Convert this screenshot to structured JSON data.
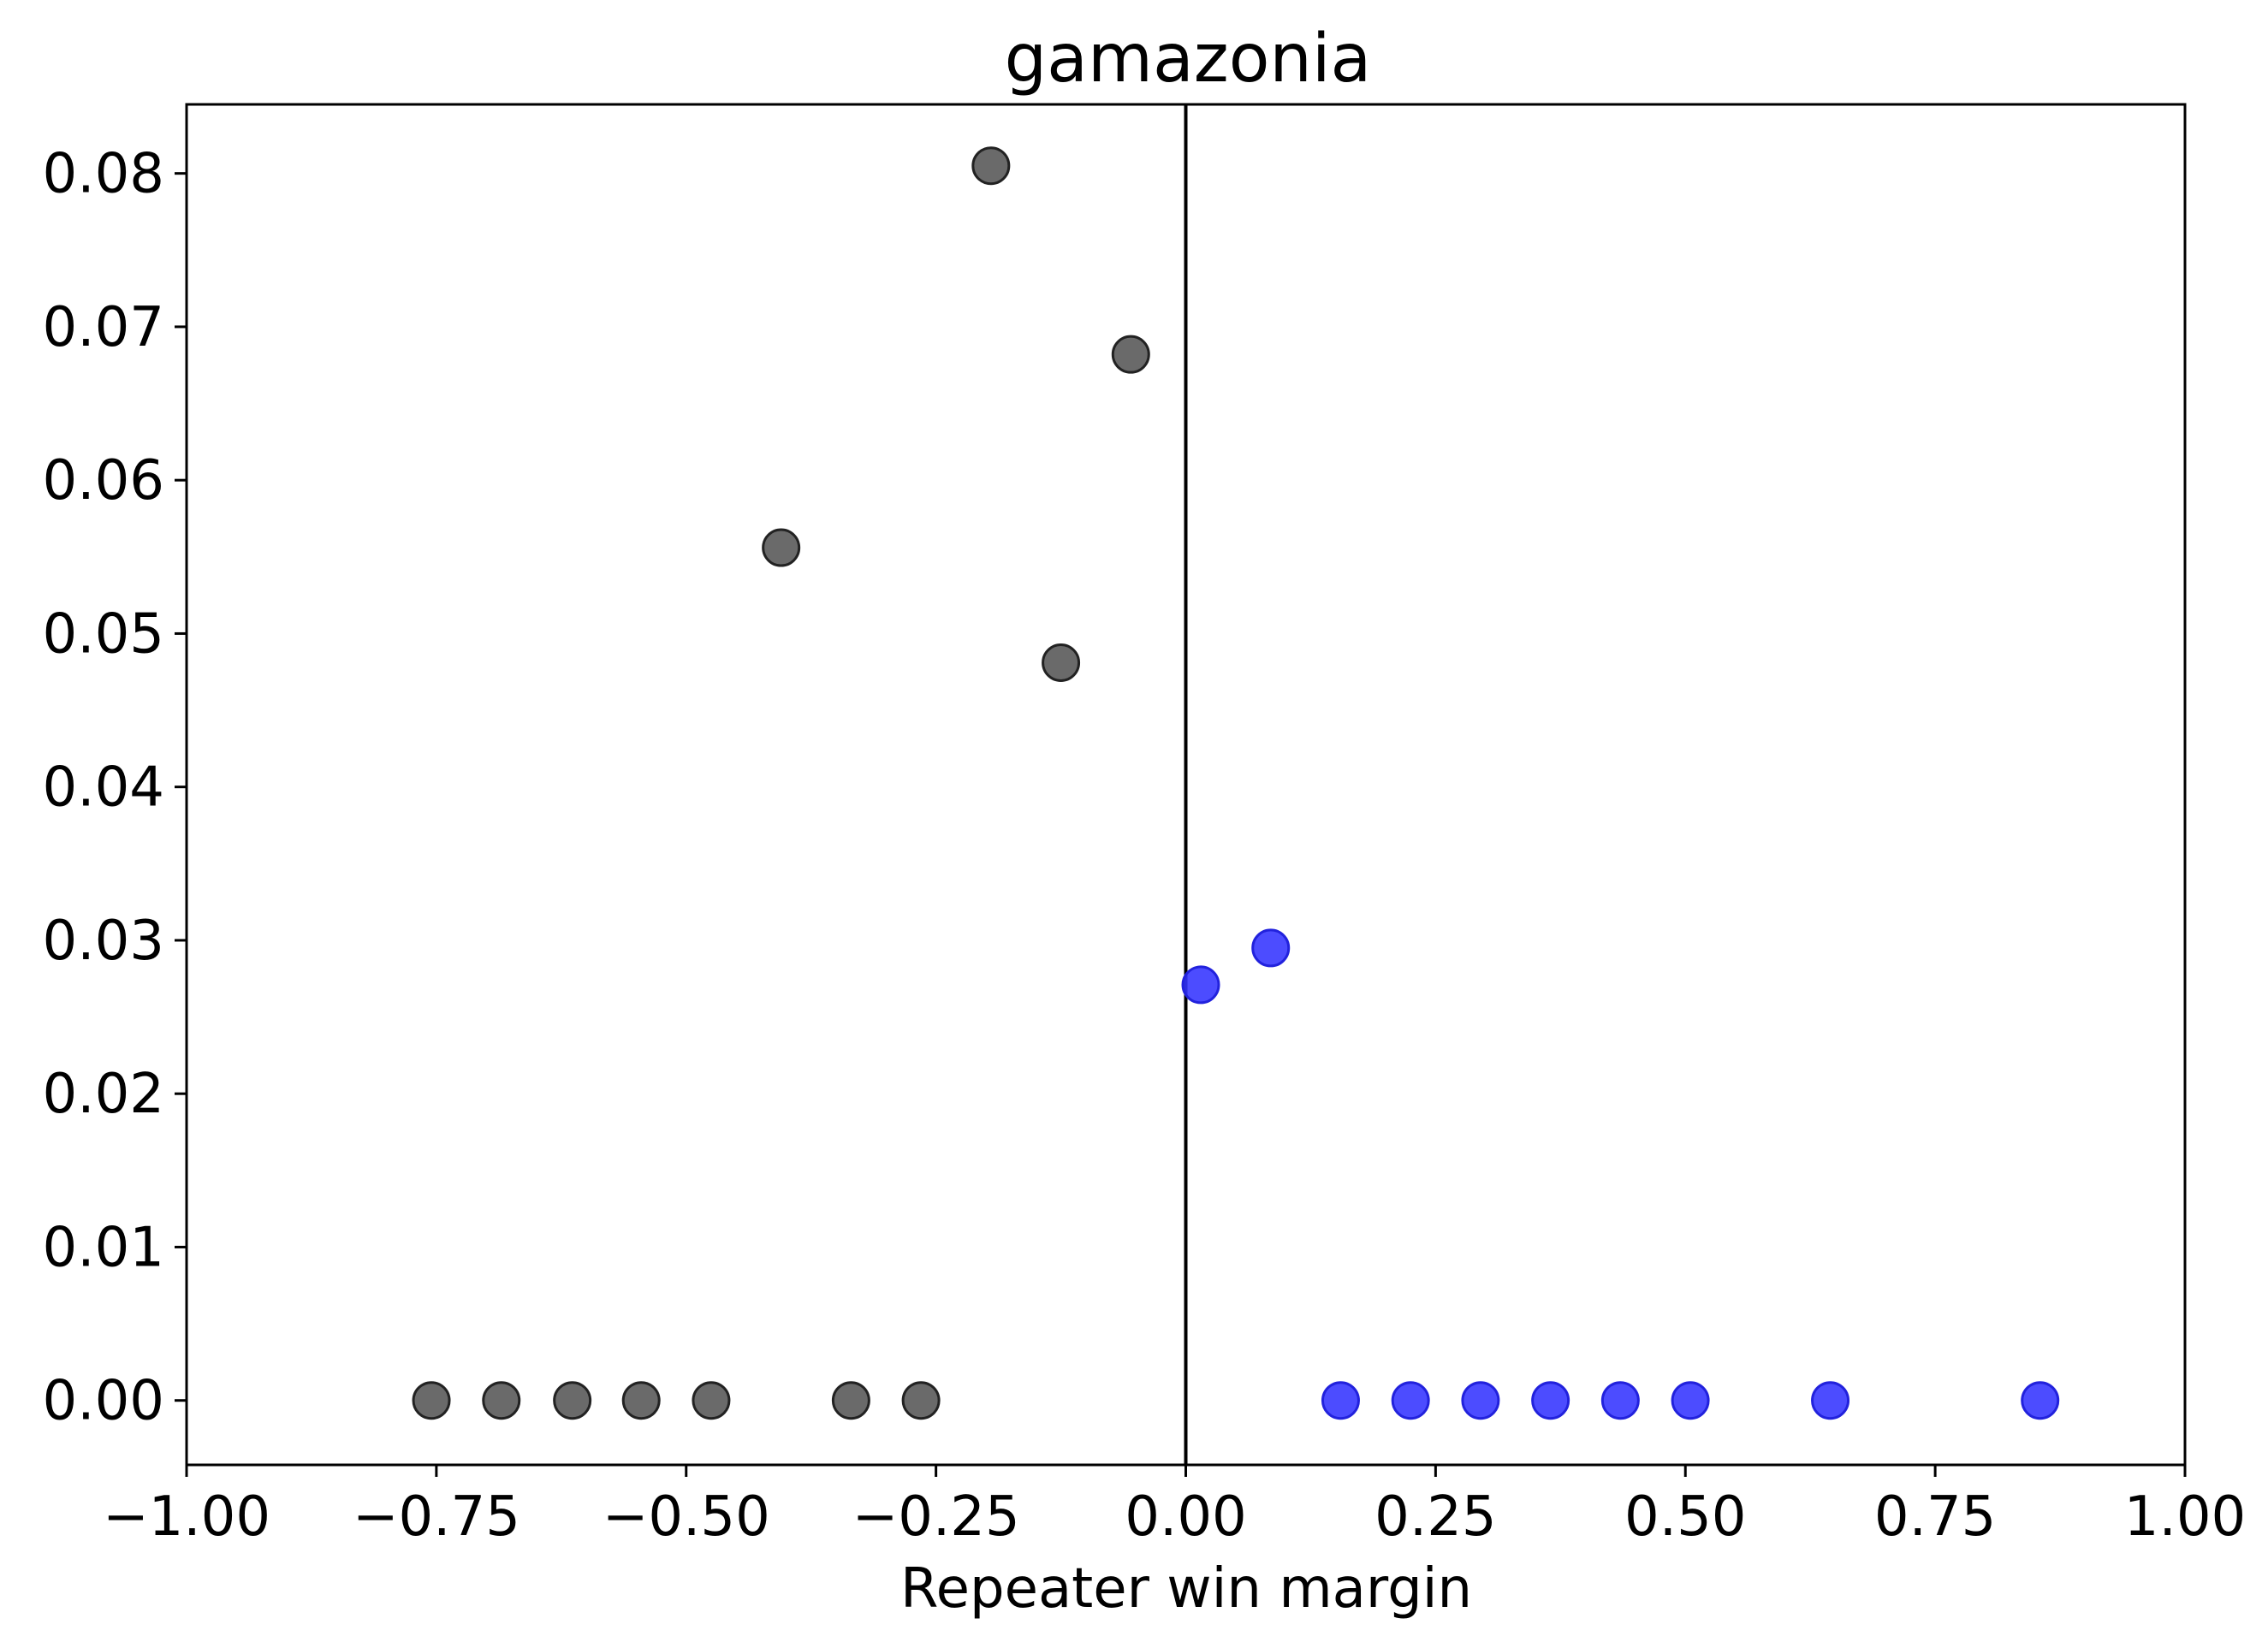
{
  "chart_data": {
    "type": "scatter",
    "title": "gamazonia",
    "xlabel": "Repeater win margin",
    "ylabel": "",
    "xlim": [
      -1.0,
      1.0
    ],
    "ylim": [
      -0.0042,
      0.0845
    ],
    "x_ticks": [
      -1.0,
      -0.75,
      -0.5,
      -0.25,
      0.0,
      0.25,
      0.5,
      0.75,
      1.0
    ],
    "x_tick_labels": [
      "−1.00",
      "−0.75",
      "−0.50",
      "−0.25",
      "0.00",
      "0.25",
      "0.50",
      "0.75",
      "1.00"
    ],
    "y_ticks": [
      0.0,
      0.01,
      0.02,
      0.03,
      0.04,
      0.05,
      0.06,
      0.07,
      0.08
    ],
    "y_tick_labels": [
      "0.00",
      "0.01",
      "0.02",
      "0.03",
      "0.04",
      "0.05",
      "0.06",
      "0.07",
      "0.08"
    ],
    "vertical_line_x": 0.0,
    "grid": false,
    "series": [
      {
        "color": "#555555",
        "edge_color": "#222222",
        "points": [
          {
            "x": -0.755,
            "y": 0.0
          },
          {
            "x": -0.685,
            "y": 0.0
          },
          {
            "x": -0.614,
            "y": 0.0
          },
          {
            "x": -0.545,
            "y": 0.0
          },
          {
            "x": -0.475,
            "y": 0.0
          },
          {
            "x": -0.405,
            "y": 0.0556
          },
          {
            "x": -0.335,
            "y": 0.0
          },
          {
            "x": -0.265,
            "y": 0.0
          },
          {
            "x": -0.195,
            "y": 0.0805
          },
          {
            "x": -0.125,
            "y": 0.0481
          },
          {
            "x": -0.055,
            "y": 0.0682
          }
        ]
      },
      {
        "color": "#3333ff",
        "edge_color": "#2222dd",
        "points": [
          {
            "x": 0.015,
            "y": 0.0271
          },
          {
            "x": 0.085,
            "y": 0.0295
          },
          {
            "x": 0.155,
            "y": 0.0
          },
          {
            "x": 0.225,
            "y": 0.0
          },
          {
            "x": 0.295,
            "y": 0.0
          },
          {
            "x": 0.365,
            "y": 0.0
          },
          {
            "x": 0.435,
            "y": 0.0
          },
          {
            "x": 0.505,
            "y": 0.0
          },
          {
            "x": 0.645,
            "y": 0.0
          },
          {
            "x": 0.855,
            "y": 0.0
          }
        ]
      }
    ]
  }
}
